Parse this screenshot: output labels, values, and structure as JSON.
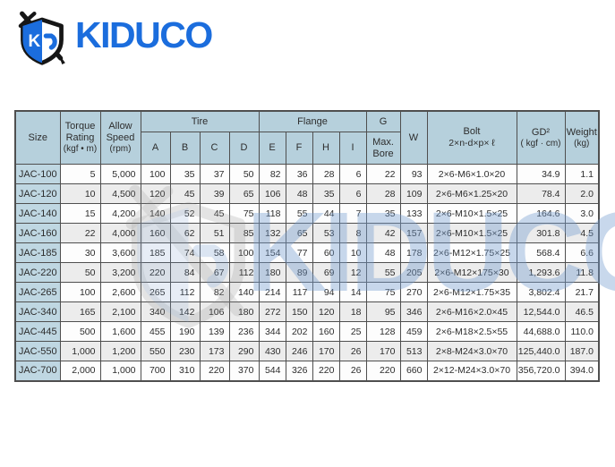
{
  "brand": {
    "name": "KIDUCO",
    "shield_letter": "K",
    "blue": "#1b6ddd"
  },
  "watermark": {
    "text": "KIDUCO"
  },
  "table": {
    "header": {
      "size": "Size",
      "torque_rating": "Torque Rating",
      "torque_unit": "(kgf • m)",
      "allow_speed": "Allow Speed",
      "allow_unit": "(rpm)",
      "tire_group": "Tire",
      "flange_group": "Flange",
      "g_group": "G",
      "max_bore": "Max. Bore",
      "tire_cols": [
        "A",
        "B",
        "C",
        "D"
      ],
      "flange_cols": [
        "E",
        "F",
        "H",
        "I"
      ],
      "w": "W",
      "bolt_line1": "Bolt",
      "bolt_line2": "2×n-d×p× ℓ",
      "gd_line1": "GD²",
      "gd_line2": "( kgf · cm)",
      "weight_line1": "Weight",
      "weight_line2": "(kg)"
    },
    "rows": [
      [
        "JAC-100",
        "5",
        "5,000",
        "100",
        "35",
        "37",
        "50",
        "82",
        "36",
        "28",
        "6",
        "22",
        "93",
        "2×6-M6×1.0×20",
        "34.9",
        "1.1"
      ],
      [
        "JAC-120",
        "10",
        "4,500",
        "120",
        "45",
        "39",
        "65",
        "106",
        "48",
        "35",
        "6",
        "28",
        "109",
        "2×6-M6×1.25×20",
        "78.4",
        "2.0"
      ],
      [
        "JAC-140",
        "15",
        "4,200",
        "140",
        "52",
        "45",
        "75",
        "118",
        "55",
        "44",
        "7",
        "35",
        "133",
        "2×6-M10×1.5×25",
        "164.6",
        "3.0"
      ],
      [
        "JAC-160",
        "22",
        "4,000",
        "160",
        "62",
        "51",
        "85",
        "132",
        "65",
        "53",
        "8",
        "42",
        "157",
        "2×6-M10×1.5×25",
        "301.8",
        "4.5"
      ],
      [
        "JAC-185",
        "30",
        "3,600",
        "185",
        "74",
        "58",
        "100",
        "154",
        "77",
        "60",
        "10",
        "48",
        "178",
        "2×6-M12×1.75×25",
        "568.4",
        "6.6"
      ],
      [
        "JAC-220",
        "50",
        "3,200",
        "220",
        "84",
        "67",
        "112",
        "180",
        "89",
        "69",
        "12",
        "55",
        "205",
        "2×6-M12×175×30",
        "1,293.6",
        "11.8"
      ],
      [
        "JAC-265",
        "100",
        "2,600",
        "265",
        "112",
        "82",
        "140",
        "214",
        "117",
        "94",
        "14",
        "75",
        "270",
        "2×6-M12×1.75×35",
        "3,802.4",
        "21.7"
      ],
      [
        "JAC-340",
        "165",
        "2,100",
        "340",
        "142",
        "106",
        "180",
        "272",
        "150",
        "120",
        "18",
        "95",
        "346",
        "2×6-M16×2.0×45",
        "12,544.0",
        "46.5"
      ],
      [
        "JAC-445",
        "500",
        "1,600",
        "455",
        "190",
        "139",
        "236",
        "344",
        "202",
        "160",
        "25",
        "128",
        "459",
        "2×6-M18×2.5×55",
        "44,688.0",
        "110.0"
      ],
      [
        "JAC-550",
        "1,000",
        "1,200",
        "550",
        "230",
        "173",
        "290",
        "430",
        "246",
        "170",
        "26",
        "170",
        "513",
        "2×8-M24×3.0×70",
        "125,440.0",
        "187.0"
      ],
      [
        "JAC-700",
        "2,000",
        "1,000",
        "700",
        "310",
        "220",
        "370",
        "544",
        "326",
        "220",
        "26",
        "220",
        "660",
        "2×12-M24×3.0×70",
        "356,720.0",
        "394.0"
      ]
    ]
  },
  "colors": {
    "header_bg": "#b6d0dc",
    "size_col_bg": "#bfd7e2",
    "row_alt_bg": "#ececec",
    "border": "#4f4f4f",
    "brand_blue": "#1b6ddd"
  }
}
